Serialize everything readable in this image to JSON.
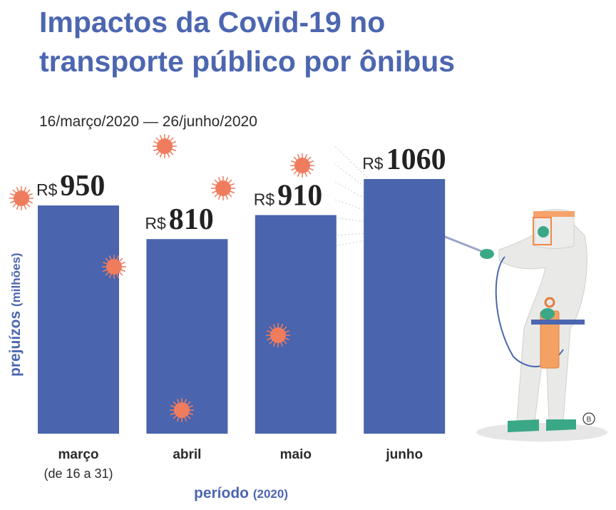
{
  "chart_data": {
    "type": "bar",
    "title": [
      "Impactos da Covid-19 no",
      "transporte público por ônibus"
    ],
    "subtitle": "16/março/2020 — 26/junho/2020",
    "categories": [
      "março",
      "abril",
      "maio",
      "junho"
    ],
    "category_notes": [
      "(de 16 a 31)",
      null,
      null,
      null
    ],
    "values": [
      950,
      810,
      910,
      1060
    ],
    "value_prefix": "R$",
    "color": "#4a64ad",
    "y_label": "prejuízos",
    "y_unit": "(milhões)",
    "x_label": "período",
    "x_unit": "(2020)"
  }
}
